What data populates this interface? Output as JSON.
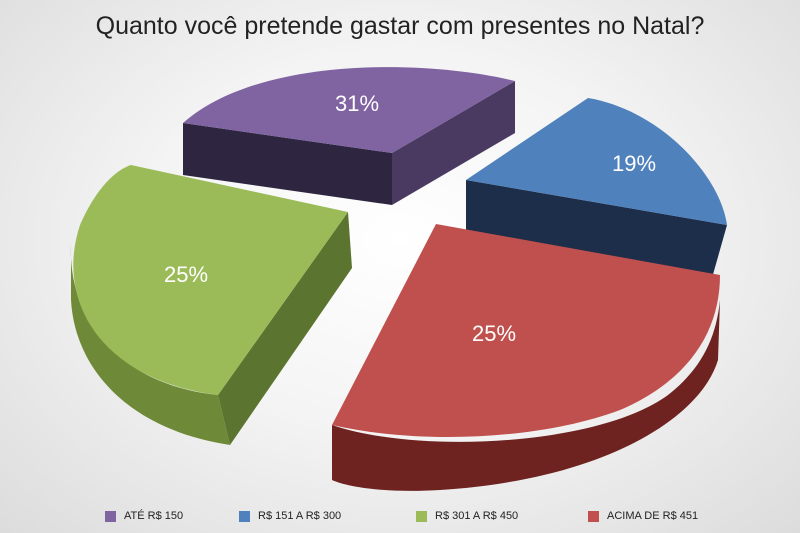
{
  "chart_data": {
    "type": "pie",
    "title": "Quanto você pretende gastar com presentes no Natal?",
    "slices": [
      {
        "label": "ATÉ R$ 150",
        "value": 31,
        "data_label": "31%",
        "color": "#8064a2",
        "side_color": "#4a3a62",
        "inner_color": "#2e2540"
      },
      {
        "label": "R$ 151 A R$ 300",
        "value": 19,
        "data_label": "19%",
        "color": "#4f81bd",
        "side_color": "#2a4f7c",
        "inner_color": "#1c2e4a"
      },
      {
        "label": "R$ 301 A R$ 450",
        "value": 25,
        "data_label": "25%",
        "color": "#9bbb59",
        "side_color": "#6e8a38",
        "inner_color": "#5b7430"
      },
      {
        "label": "ACIMA DE R$ 451",
        "value": 25,
        "data_label": "25%",
        "color": "#c0504d",
        "side_color": "#6e2321",
        "inner_color": "#7a2a27"
      }
    ],
    "legend_position": "bottom",
    "exploded": true,
    "three_d": true
  }
}
